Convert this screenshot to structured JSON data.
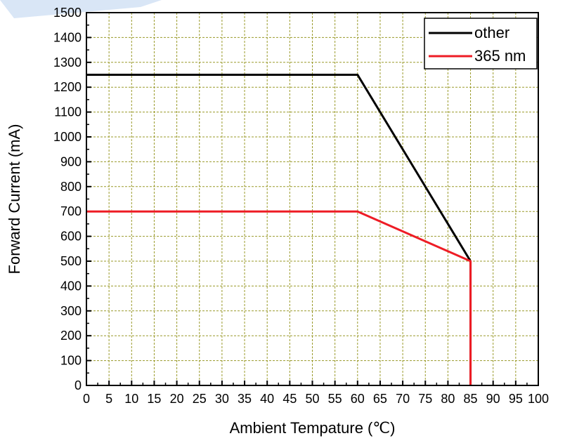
{
  "chart_data": {
    "type": "line",
    "xlabel": "Ambient Tempature (℃)",
    "ylabel": "Forward Current (mA)",
    "xlim": [
      0,
      100
    ],
    "ylim": [
      0,
      1500
    ],
    "x_ticks": [
      0,
      5,
      10,
      15,
      20,
      25,
      30,
      35,
      40,
      45,
      50,
      55,
      60,
      65,
      70,
      75,
      80,
      85,
      90,
      95,
      100
    ],
    "y_ticks": [
      0,
      100,
      200,
      300,
      400,
      500,
      600,
      700,
      800,
      900,
      1000,
      1100,
      1200,
      1300,
      1400,
      1500
    ],
    "grid": true,
    "legend_position": "top-right",
    "series": [
      {
        "name": "other",
        "color": "#000000",
        "x": [
          0,
          60,
          85,
          85
        ],
        "y": [
          1250,
          1250,
          500,
          0
        ]
      },
      {
        "name": "365 nm",
        "color": "#ee1c25",
        "x": [
          0,
          60,
          85,
          85
        ],
        "y": [
          700,
          700,
          500,
          0
        ]
      }
    ]
  },
  "colors": {
    "grid": "#9a9a2a",
    "watermark": "#c9dcf2"
  }
}
